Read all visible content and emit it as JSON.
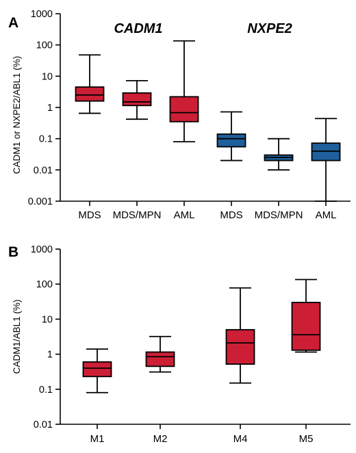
{
  "chart_data": [
    {
      "panel": "A",
      "type": "box",
      "scale": "log",
      "ylabel": "CADM1 or NXPE2/ABL1 (%)",
      "yticks": [
        "0.001",
        "0.01",
        "0.1",
        "1",
        "10",
        "100",
        "1000"
      ],
      "ylim": [
        0.001,
        1000
      ],
      "groups": [
        {
          "name": "CADM1",
          "color": "#cc1f36"
        },
        {
          "name": "NXPE2",
          "color": "#1f5f9c"
        }
      ],
      "boxes": [
        {
          "category": "MDS",
          "group": "CADM1",
          "min": 0.65,
          "q1": 1.6,
          "median": 2.5,
          "q3": 4.5,
          "max": 48
        },
        {
          "category": "MDS/MPN",
          "group": "CADM1",
          "min": 0.42,
          "q1": 1.15,
          "median": 1.5,
          "q3": 2.9,
          "max": 7.2
        },
        {
          "category": "AML",
          "group": "CADM1",
          "min": 0.08,
          "q1": 0.35,
          "median": 0.68,
          "q3": 2.2,
          "max": 135
        },
        {
          "category": "MDS",
          "group": "NXPE2",
          "min": 0.02,
          "q1": 0.055,
          "median": 0.1,
          "q3": 0.14,
          "max": 0.72
        },
        {
          "category": "MDS/MPN",
          "group": "NXPE2",
          "min": 0.01,
          "q1": 0.02,
          "median": 0.025,
          "q3": 0.03,
          "max": 0.1
        },
        {
          "category": "AML",
          "group": "NXPE2",
          "min": 0.001,
          "q1": 0.02,
          "median": 0.04,
          "q3": 0.072,
          "max": 0.44
        }
      ]
    },
    {
      "panel": "B",
      "type": "box",
      "scale": "log",
      "ylabel": "CADM1/ABL1 (%)",
      "yticks": [
        "0.01",
        "0.1",
        "1",
        "10",
        "100",
        "1000"
      ],
      "ylim": [
        0.01,
        1000
      ],
      "color": "#cc1f36",
      "boxes": [
        {
          "category": "M1",
          "min": 0.08,
          "q1": 0.23,
          "median": 0.4,
          "q3": 0.6,
          "max": 1.4
        },
        {
          "category": "M2",
          "min": 0.31,
          "q1": 0.45,
          "median": 0.85,
          "q3": 1.15,
          "max": 3.2
        },
        {
          "category": "M4",
          "min": 0.15,
          "q1": 0.52,
          "median": 2.1,
          "q3": 5.0,
          "max": 78
        },
        {
          "category": "M5",
          "min": 1.15,
          "q1": 1.3,
          "median": 3.6,
          "q3": 30,
          "max": 135
        }
      ]
    }
  ]
}
